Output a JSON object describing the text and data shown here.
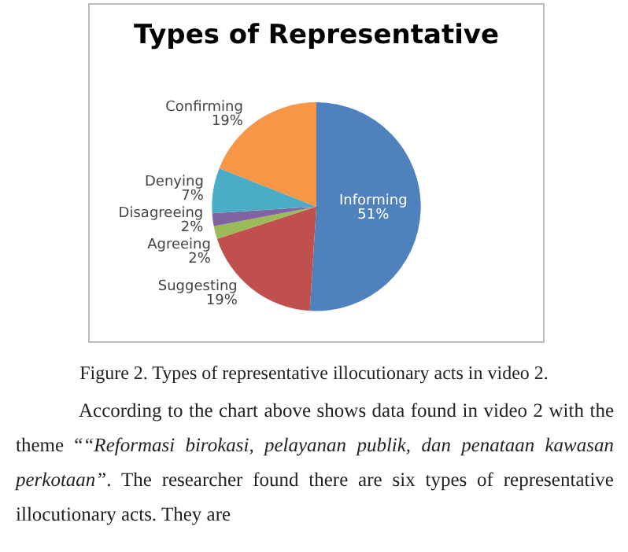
{
  "chart_data": {
    "type": "pie",
    "title": "Types of Representative",
    "categories": [
      "Informing",
      "Suggesting",
      "Agreeing",
      "Disagreeing",
      "Denying",
      "Confirming"
    ],
    "values": [
      51,
      19,
      2,
      2,
      7,
      19
    ],
    "value_labels": [
      "51%",
      "19%",
      "2%",
      "2%",
      "7%",
      "19%"
    ],
    "colors": [
      "#4f81bd",
      "#c0504d",
      "#9bbb59",
      "#8064a2",
      "#4bacc6",
      "#f79646"
    ],
    "legend": false,
    "annotations": [
      "Figure 2. Types of representative illocutionary acts in video 2.",
      "According to the chart above shows data found in video 2 with the theme “",
      "“Reformasi birokasi, pelayanan publik, dan penataan kawasan perkotaan”",
      ". The researcher found there are six types of representative illocutionary acts. They are"
    ]
  }
}
